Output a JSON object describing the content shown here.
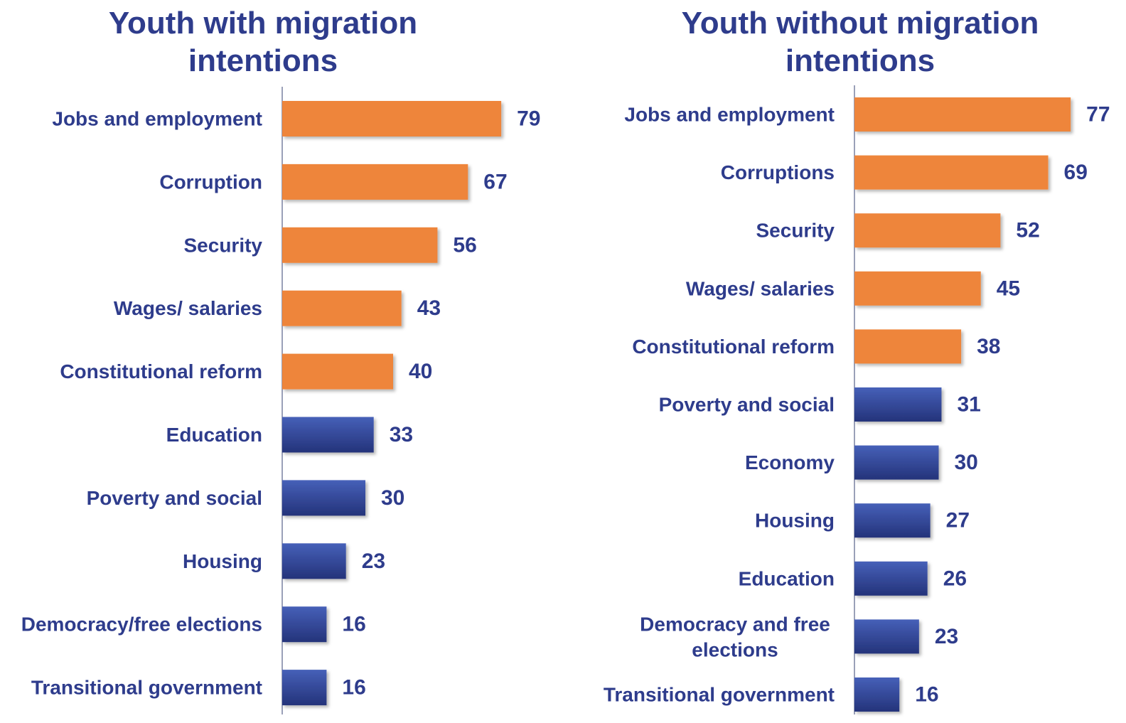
{
  "colors": {
    "highlight": "#EE853A",
    "base": "#2E4699",
    "text": "#2E3C8C",
    "axis": "#9AA0B8"
  },
  "chart_data": [
    {
      "type": "bar",
      "orientation": "horizontal",
      "title": "Youth with migration intentions",
      "categories": [
        "Jobs and employment",
        "Corruption",
        "Security",
        "Wages/ salaries",
        "Constitutional reform",
        "Education",
        "Poverty and social",
        "Housing",
        "Democracy/free elections",
        "Transitional government"
      ],
      "values": [
        79,
        67,
        56,
        43,
        40,
        33,
        30,
        23,
        16,
        16
      ],
      "highlighted": [
        true,
        true,
        true,
        true,
        true,
        false,
        false,
        false,
        false,
        false
      ],
      "xlim": [
        0,
        100
      ],
      "grid": false
    },
    {
      "type": "bar",
      "orientation": "horizontal",
      "title": "Youth without migration intentions",
      "categories": [
        "Jobs and employment",
        "Corruptions",
        "Security",
        "Wages/ salaries",
        "Constitutional reform",
        "Poverty and social",
        "Economy",
        "Housing",
        "Education",
        "Democracy and free elections",
        "Transitional government"
      ],
      "values": [
        77,
        69,
        52,
        45,
        38,
        31,
        30,
        27,
        26,
        23,
        16
      ],
      "highlighted": [
        true,
        true,
        true,
        true,
        true,
        false,
        false,
        false,
        false,
        false,
        false
      ],
      "xlim": [
        0,
        100
      ],
      "grid": false
    }
  ]
}
